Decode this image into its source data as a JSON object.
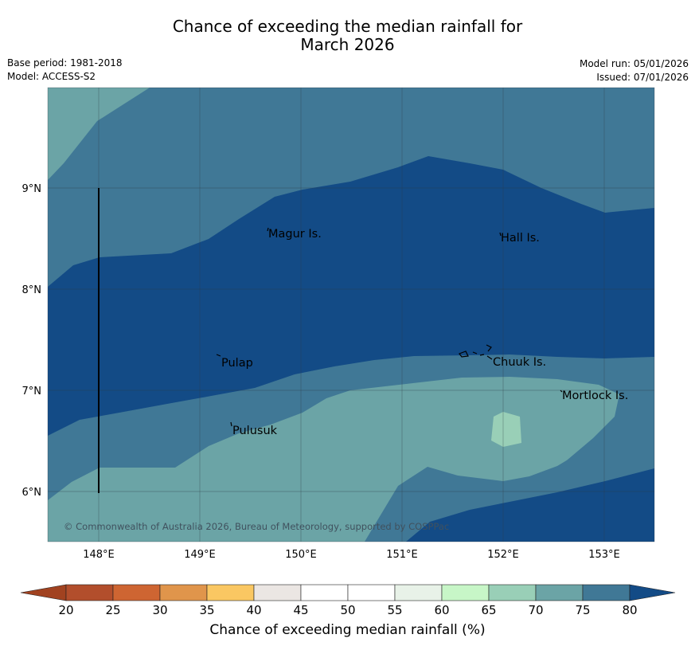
{
  "header": {
    "title_line1": "Chance of exceeding the median rainfall for",
    "title_line2": "March 2026",
    "base_period": "Base period: 1981-2018",
    "model": "Model: ACCESS-S2",
    "model_run": "Model run: 05/01/2026",
    "issued": "Issued: 07/01/2026"
  },
  "map": {
    "lon_ticks": [
      "148°E",
      "149°E",
      "150°E",
      "151°E",
      "152°E",
      "153°E"
    ],
    "lat_ticks": [
      "9°N",
      "8°N",
      "7°N",
      "6°N"
    ],
    "places": [
      "Magur Is.",
      "Hall Is.",
      "Pulap",
      "Chuuk Is.",
      "Mortlock Is.",
      "Pulusuk"
    ],
    "copyright": "© Commonwealth of Australia 2026, Bureau of Meteorology, supported by COSPPac",
    "colors": {
      "c55_60": "#e8f2e8",
      "c65_70": "#99cfb7",
      "c70_75": "#6ba4a6",
      "c75_80": "#407896",
      "c80_plus": "#134b86"
    }
  },
  "colorbar": {
    "ticks": [
      "20",
      "25",
      "30",
      "35",
      "40",
      "45",
      "50",
      "55",
      "60",
      "65",
      "70",
      "75",
      "80"
    ],
    "colors": [
      "#a14220",
      "#b24e2c",
      "#ce6532",
      "#e0954b",
      "#fac762",
      "#ebe6e3",
      "#ffffff",
      "#ffffff",
      "#e8f2e8",
      "#c7f6c7",
      "#99cfb7",
      "#6ba4a6",
      "#407896",
      "#134b86"
    ],
    "label": "Chance of exceeding median rainfall (%)"
  }
}
